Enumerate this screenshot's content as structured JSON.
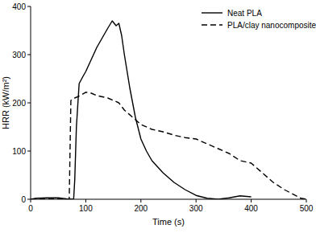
{
  "chart_data": {
    "type": "line",
    "x_label": "Time (s)",
    "y_label": "HRR (kW/m²)",
    "xlim": [
      0,
      500
    ],
    "xticks": [
      0,
      100,
      200,
      300,
      400,
      500
    ],
    "ylim": [
      0,
      400
    ],
    "yticks": [
      0,
      100,
      200,
      300,
      400
    ],
    "grid": false,
    "legend": "top-right",
    "series": [
      {
        "name": "Neat PLA",
        "color": "#000000",
        "line_style": "solid",
        "x": [
          0,
          10,
          30,
          50,
          65,
          78,
          80,
          83,
          88,
          95,
          100,
          110,
          120,
          130,
          140,
          148,
          155,
          160,
          165,
          170,
          180,
          190,
          200,
          210,
          220,
          240,
          260,
          280,
          300,
          320,
          340,
          360,
          380,
          400
        ],
        "values": [
          0,
          2,
          3,
          3,
          1,
          0,
          40,
          150,
          240,
          255,
          265,
          290,
          315,
          335,
          355,
          370,
          360,
          365,
          340,
          300,
          230,
          170,
          125,
          100,
          80,
          55,
          35,
          20,
          8,
          2,
          0,
          3,
          7,
          5
        ]
      },
      {
        "name": "PLA/clay nanocomposite",
        "color": "#000000",
        "line_style": "dashed",
        "x": [
          0,
          50,
          70,
          73,
          80,
          90,
          100,
          110,
          120,
          140,
          160,
          170,
          190,
          200,
          220,
          240,
          260,
          280,
          300,
          320,
          340,
          360,
          380,
          400,
          420,
          440,
          460,
          480,
          490,
          500
        ],
        "values": [
          0,
          0,
          0,
          205,
          210,
          215,
          222,
          220,
          215,
          210,
          200,
          185,
          165,
          155,
          145,
          140,
          133,
          128,
          125,
          115,
          105,
          95,
          80,
          75,
          55,
          35,
          20,
          8,
          2,
          0
        ]
      }
    ]
  }
}
